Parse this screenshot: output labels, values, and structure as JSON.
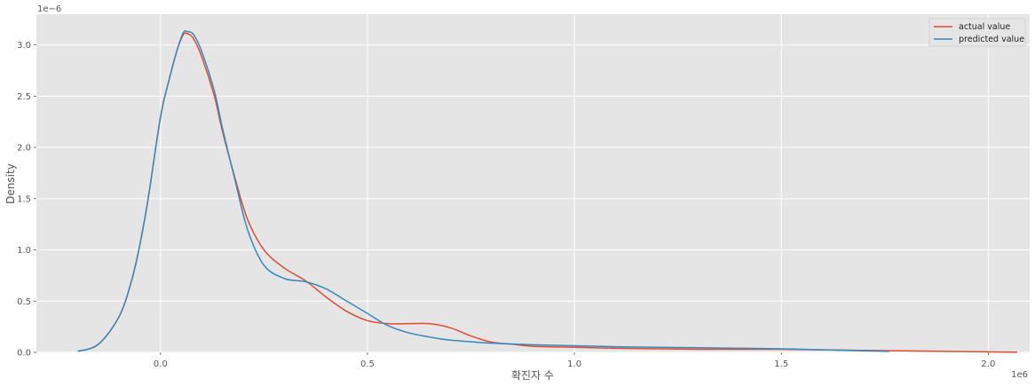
{
  "chart_data": {
    "type": "line",
    "title": "",
    "xlabel": "확진자 수",
    "ylabel": "Density",
    "x_offset_label": "1e6",
    "y_offset_label": "1e−6",
    "xlim": [
      -0.3,
      2.1
    ],
    "ylim": [
      0,
      3.3
    ],
    "xticks": [
      0.0,
      0.5,
      1.0,
      1.5,
      2.0
    ],
    "xtick_labels": [
      "0.0",
      "0.5",
      "1.0",
      "1.5",
      "2.0"
    ],
    "yticks": [
      0,
      0.5,
      1.0,
      1.5,
      2.0,
      2.5,
      3.0
    ],
    "ytick_labels": [
      "0.0",
      "0.5",
      "1.0",
      "1.5",
      "2.0",
      "2.5",
      "3.0"
    ],
    "grid": true,
    "legend": "top-right",
    "series": [
      {
        "name": "actual value",
        "color": "#E24A33",
        "points": [
          [
            -0.2,
            0.01
          ],
          [
            -0.15,
            0.08
          ],
          [
            -0.1,
            0.35
          ],
          [
            -0.07,
            0.7
          ],
          [
            -0.05,
            1.05
          ],
          [
            -0.03,
            1.5
          ],
          [
            0.0,
            2.3
          ],
          [
            0.02,
            2.65
          ],
          [
            0.04,
            2.95
          ],
          [
            0.055,
            3.1
          ],
          [
            0.065,
            3.11
          ],
          [
            0.08,
            3.06
          ],
          [
            0.1,
            2.88
          ],
          [
            0.13,
            2.5
          ],
          [
            0.15,
            2.15
          ],
          [
            0.18,
            1.7
          ],
          [
            0.21,
            1.3
          ],
          [
            0.25,
            1.0
          ],
          [
            0.3,
            0.82
          ],
          [
            0.35,
            0.7
          ],
          [
            0.4,
            0.54
          ],
          [
            0.45,
            0.4
          ],
          [
            0.5,
            0.31
          ],
          [
            0.55,
            0.28
          ],
          [
            0.6,
            0.28
          ],
          [
            0.65,
            0.28
          ],
          [
            0.7,
            0.24
          ],
          [
            0.75,
            0.16
          ],
          [
            0.8,
            0.1
          ],
          [
            0.85,
            0.08
          ],
          [
            0.9,
            0.06
          ],
          [
            1.0,
            0.05
          ],
          [
            1.1,
            0.04
          ],
          [
            1.2,
            0.035
          ],
          [
            1.3,
            0.03
          ],
          [
            1.4,
            0.03
          ],
          [
            1.5,
            0.03
          ],
          [
            1.6,
            0.025
          ],
          [
            1.7,
            0.02
          ],
          [
            1.8,
            0.015
          ],
          [
            1.9,
            0.01
          ],
          [
            2.0,
            0.005
          ],
          [
            2.07,
            0.002
          ]
        ]
      },
      {
        "name": "predicted value",
        "color": "#348ABD",
        "points": [
          [
            -0.2,
            0.01
          ],
          [
            -0.15,
            0.08
          ],
          [
            -0.1,
            0.35
          ],
          [
            -0.07,
            0.7
          ],
          [
            -0.05,
            1.05
          ],
          [
            -0.03,
            1.5
          ],
          [
            0.0,
            2.3
          ],
          [
            0.02,
            2.65
          ],
          [
            0.04,
            2.95
          ],
          [
            0.055,
            3.12
          ],
          [
            0.065,
            3.13
          ],
          [
            0.08,
            3.1
          ],
          [
            0.1,
            2.93
          ],
          [
            0.13,
            2.55
          ],
          [
            0.15,
            2.18
          ],
          [
            0.18,
            1.68
          ],
          [
            0.21,
            1.2
          ],
          [
            0.25,
            0.85
          ],
          [
            0.3,
            0.72
          ],
          [
            0.35,
            0.69
          ],
          [
            0.4,
            0.62
          ],
          [
            0.45,
            0.5
          ],
          [
            0.5,
            0.38
          ],
          [
            0.55,
            0.26
          ],
          [
            0.6,
            0.19
          ],
          [
            0.65,
            0.15
          ],
          [
            0.7,
            0.12
          ],
          [
            0.8,
            0.09
          ],
          [
            0.9,
            0.075
          ],
          [
            1.0,
            0.065
          ],
          [
            1.1,
            0.055
          ],
          [
            1.2,
            0.05
          ],
          [
            1.3,
            0.045
          ],
          [
            1.4,
            0.04
          ],
          [
            1.5,
            0.035
          ],
          [
            1.6,
            0.025
          ],
          [
            1.7,
            0.015
          ],
          [
            1.76,
            0.01
          ]
        ]
      }
    ]
  }
}
